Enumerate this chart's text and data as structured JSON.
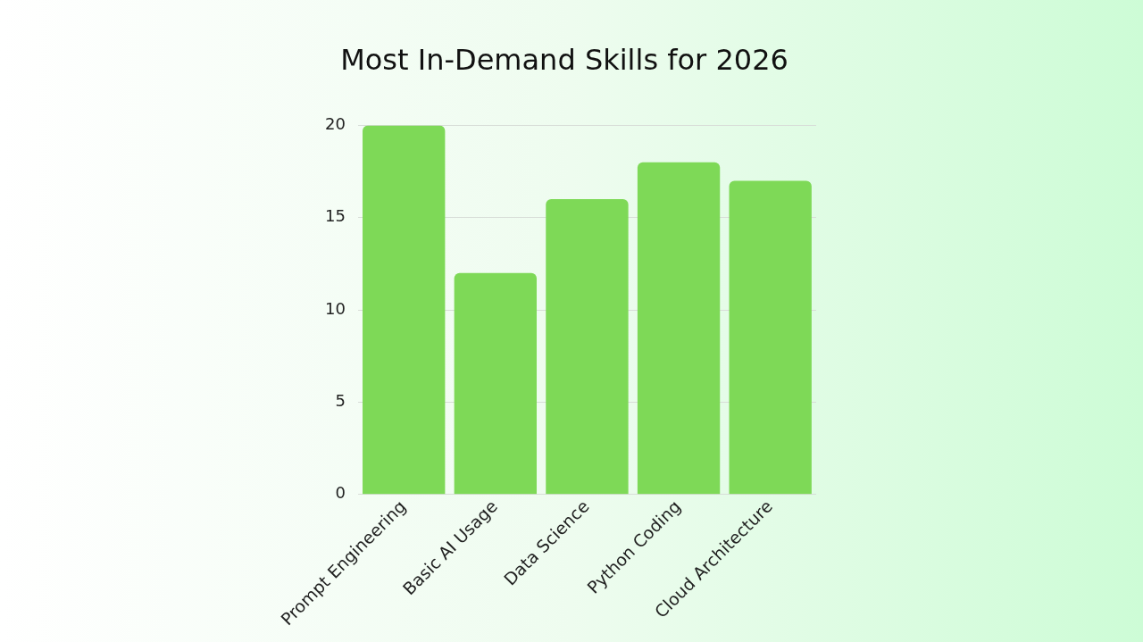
{
  "chart_data": {
    "type": "bar",
    "title": "Most In-Demand Skills for 2026",
    "categories": [
      "Prompt Engineering",
      "Basic AI Usage",
      "Data Science",
      "Python Coding",
      "Cloud Architecture"
    ],
    "values": [
      20,
      12,
      16,
      18,
      17
    ],
    "color": "#7ed957",
    "ylim": [
      0,
      20
    ],
    "yticks": [
      0,
      5,
      10,
      15,
      20
    ],
    "grid": "y",
    "legend": false
  }
}
